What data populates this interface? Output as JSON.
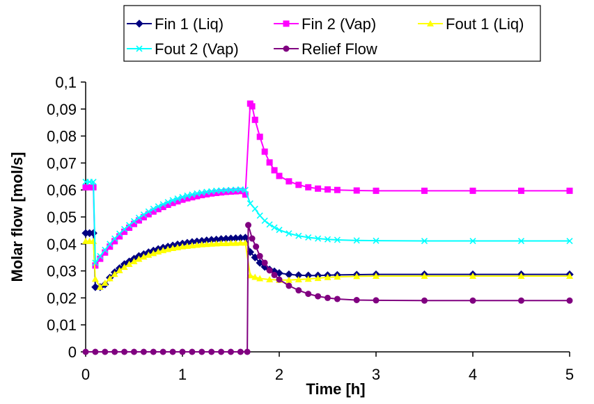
{
  "chart_data": {
    "type": "line",
    "title": "",
    "xlabel": "Time [h]",
    "ylabel": "Molar flow [mol/s]",
    "xlim": [
      0,
      5
    ],
    "ylim": [
      0,
      0.1
    ],
    "x_ticks": [
      "0",
      "1",
      "2",
      "3",
      "4",
      "5"
    ],
    "y_ticks": [
      "0",
      "0,01",
      "0,02",
      "0,03",
      "0,04",
      "0,05",
      "0,06",
      "0,07",
      "0,08",
      "0,09",
      "0,1"
    ],
    "grid": false,
    "legend_position": "top",
    "series": [
      {
        "name": "Fin 1 (Liq)",
        "color": "#000080",
        "marker": "diamond",
        "points": [
          [
            0,
            0.044
          ],
          [
            0.04,
            0.044
          ],
          [
            0.08,
            0.044
          ],
          [
            0.1,
            0.024
          ],
          [
            0.15,
            0.024
          ],
          [
            0.2,
            0.025
          ],
          [
            0.25,
            0.0275
          ],
          [
            0.3,
            0.0295
          ],
          [
            0.35,
            0.031
          ],
          [
            0.4,
            0.0325
          ],
          [
            0.45,
            0.0335
          ],
          [
            0.5,
            0.0345
          ],
          [
            0.55,
            0.0355
          ],
          [
            0.6,
            0.0362
          ],
          [
            0.65,
            0.0369
          ],
          [
            0.7,
            0.0375
          ],
          [
            0.75,
            0.0381
          ],
          [
            0.8,
            0.0386
          ],
          [
            0.85,
            0.039
          ],
          [
            0.9,
            0.0394
          ],
          [
            0.95,
            0.0398
          ],
          [
            1.0,
            0.0401
          ],
          [
            1.05,
            0.0404
          ],
          [
            1.1,
            0.0407
          ],
          [
            1.15,
            0.0409
          ],
          [
            1.2,
            0.0411
          ],
          [
            1.25,
            0.0413
          ],
          [
            1.3,
            0.0415
          ],
          [
            1.35,
            0.0416
          ],
          [
            1.4,
            0.0418
          ],
          [
            1.45,
            0.0419
          ],
          [
            1.5,
            0.042
          ],
          [
            1.55,
            0.0421
          ],
          [
            1.6,
            0.0422
          ],
          [
            1.65,
            0.0423
          ],
          [
            1.7,
            0.037
          ],
          [
            1.75,
            0.035
          ],
          [
            1.8,
            0.033
          ],
          [
            1.85,
            0.0315
          ],
          [
            1.9,
            0.0305
          ],
          [
            1.95,
            0.0298
          ],
          [
            2.0,
            0.0292
          ],
          [
            2.1,
            0.0287
          ],
          [
            2.2,
            0.0284
          ],
          [
            2.3,
            0.0283
          ],
          [
            2.4,
            0.0283
          ],
          [
            2.5,
            0.0284
          ],
          [
            2.6,
            0.0285
          ],
          [
            2.8,
            0.0286
          ],
          [
            3.0,
            0.0287
          ],
          [
            3.5,
            0.0287
          ],
          [
            4.0,
            0.0287
          ],
          [
            4.5,
            0.0287
          ],
          [
            5.0,
            0.0287
          ]
        ]
      },
      {
        "name": "Fin 2 (Vap)",
        "color": "#FF00FF",
        "marker": "square",
        "points": [
          [
            0,
            0.061
          ],
          [
            0.04,
            0.061
          ],
          [
            0.08,
            0.061
          ],
          [
            0.1,
            0.032
          ],
          [
            0.15,
            0.0345
          ],
          [
            0.2,
            0.0368
          ],
          [
            0.25,
            0.039
          ],
          [
            0.3,
            0.041
          ],
          [
            0.35,
            0.0428
          ],
          [
            0.4,
            0.0445
          ],
          [
            0.45,
            0.046
          ],
          [
            0.5,
            0.0474
          ],
          [
            0.55,
            0.0487
          ],
          [
            0.6,
            0.0499
          ],
          [
            0.65,
            0.051
          ],
          [
            0.7,
            0.052
          ],
          [
            0.75,
            0.0529
          ],
          [
            0.8,
            0.0537
          ],
          [
            0.85,
            0.0545
          ],
          [
            0.9,
            0.0552
          ],
          [
            0.95,
            0.0558
          ],
          [
            1.0,
            0.0564
          ],
          [
            1.05,
            0.0569
          ],
          [
            1.1,
            0.0573
          ],
          [
            1.15,
            0.0577
          ],
          [
            1.2,
            0.0581
          ],
          [
            1.25,
            0.0584
          ],
          [
            1.3,
            0.0587
          ],
          [
            1.35,
            0.0589
          ],
          [
            1.4,
            0.0591
          ],
          [
            1.45,
            0.0593
          ],
          [
            1.5,
            0.0594
          ],
          [
            1.55,
            0.0595
          ],
          [
            1.6,
            0.0596
          ],
          [
            1.65,
            0.0583
          ],
          [
            1.7,
            0.092
          ],
          [
            1.72,
            0.091
          ],
          [
            1.75,
            0.086
          ],
          [
            1.8,
            0.0797
          ],
          [
            1.85,
            0.0742
          ],
          [
            1.9,
            0.0702
          ],
          [
            1.95,
            0.0673
          ],
          [
            2.0,
            0.0652
          ],
          [
            2.1,
            0.0632
          ],
          [
            2.2,
            0.0619
          ],
          [
            2.3,
            0.061
          ],
          [
            2.4,
            0.0605
          ],
          [
            2.5,
            0.0602
          ],
          [
            2.6,
            0.06
          ],
          [
            2.8,
            0.0598
          ],
          [
            3.0,
            0.0597
          ],
          [
            3.5,
            0.0597
          ],
          [
            4.0,
            0.0597
          ],
          [
            4.5,
            0.0597
          ],
          [
            5.0,
            0.0597
          ]
        ]
      },
      {
        "name": "Fout 1 (Liq)",
        "color": "#FFFF00",
        "marker": "triangle",
        "points": [
          [
            0,
            0.041
          ],
          [
            0.04,
            0.041
          ],
          [
            0.08,
            0.041
          ],
          [
            0.1,
            0.027
          ],
          [
            0.15,
            0.024
          ],
          [
            0.2,
            0.0255
          ],
          [
            0.25,
            0.0272
          ],
          [
            0.3,
            0.0288
          ],
          [
            0.35,
            0.0302
          ],
          [
            0.4,
            0.0314
          ],
          [
            0.45,
            0.0325
          ],
          [
            0.5,
            0.0335
          ],
          [
            0.55,
            0.0344
          ],
          [
            0.6,
            0.0352
          ],
          [
            0.65,
            0.0359
          ],
          [
            0.7,
            0.0365
          ],
          [
            0.75,
            0.0371
          ],
          [
            0.8,
            0.0376
          ],
          [
            0.85,
            0.038
          ],
          [
            0.9,
            0.0384
          ],
          [
            0.95,
            0.0387
          ],
          [
            1.0,
            0.039
          ],
          [
            1.05,
            0.0392
          ],
          [
            1.1,
            0.0394
          ],
          [
            1.15,
            0.0396
          ],
          [
            1.2,
            0.0398
          ],
          [
            1.25,
            0.0399
          ],
          [
            1.3,
            0.04
          ],
          [
            1.35,
            0.0401
          ],
          [
            1.4,
            0.0402
          ],
          [
            1.45,
            0.0402
          ],
          [
            1.5,
            0.0403
          ],
          [
            1.55,
            0.0403
          ],
          [
            1.6,
            0.0404
          ],
          [
            1.65,
            0.0404
          ],
          [
            1.7,
            0.0283
          ],
          [
            1.75,
            0.0277
          ],
          [
            1.8,
            0.0272
          ],
          [
            1.9,
            0.0268
          ],
          [
            2.0,
            0.0266
          ],
          [
            2.1,
            0.0266
          ],
          [
            2.2,
            0.0268
          ],
          [
            2.3,
            0.027
          ],
          [
            2.4,
            0.0273
          ],
          [
            2.5,
            0.0276
          ],
          [
            2.6,
            0.0278
          ],
          [
            2.8,
            0.028
          ],
          [
            3.0,
            0.0281
          ],
          [
            3.5,
            0.0281
          ],
          [
            4.0,
            0.0281
          ],
          [
            4.5,
            0.0281
          ],
          [
            5.0,
            0.0281
          ]
        ]
      },
      {
        "name": "Fout 2 (Vap)",
        "color": "#00FFFF",
        "marker": "x",
        "points": [
          [
            0,
            0.063
          ],
          [
            0.04,
            0.063
          ],
          [
            0.08,
            0.063
          ],
          [
            0.1,
            0.033
          ],
          [
            0.15,
            0.0355
          ],
          [
            0.2,
            0.0378
          ],
          [
            0.25,
            0.04
          ],
          [
            0.3,
            0.042
          ],
          [
            0.35,
            0.0438
          ],
          [
            0.4,
            0.0455
          ],
          [
            0.45,
            0.047
          ],
          [
            0.5,
            0.0484
          ],
          [
            0.55,
            0.0497
          ],
          [
            0.6,
            0.0509
          ],
          [
            0.65,
            0.052
          ],
          [
            0.7,
            0.053
          ],
          [
            0.75,
            0.0539
          ],
          [
            0.8,
            0.0547
          ],
          [
            0.85,
            0.0555
          ],
          [
            0.9,
            0.0562
          ],
          [
            0.95,
            0.0568
          ],
          [
            1.0,
            0.0574
          ],
          [
            1.05,
            0.0579
          ],
          [
            1.1,
            0.0583
          ],
          [
            1.15,
            0.0587
          ],
          [
            1.2,
            0.059
          ],
          [
            1.25,
            0.0593
          ],
          [
            1.3,
            0.0595
          ],
          [
            1.35,
            0.0597
          ],
          [
            1.4,
            0.0598
          ],
          [
            1.45,
            0.0599
          ],
          [
            1.5,
            0.06
          ],
          [
            1.55,
            0.0601
          ],
          [
            1.6,
            0.0602
          ],
          [
            1.65,
            0.06
          ],
          [
            1.7,
            0.055
          ],
          [
            1.75,
            0.053
          ],
          [
            1.8,
            0.0505
          ],
          [
            1.85,
            0.0486
          ],
          [
            1.9,
            0.0472
          ],
          [
            1.95,
            0.0461
          ],
          [
            2.0,
            0.0452
          ],
          [
            2.1,
            0.0439
          ],
          [
            2.2,
            0.043
          ],
          [
            2.3,
            0.0424
          ],
          [
            2.4,
            0.042
          ],
          [
            2.5,
            0.0417
          ],
          [
            2.6,
            0.0415
          ],
          [
            2.8,
            0.0413
          ],
          [
            3.0,
            0.0412
          ],
          [
            3.5,
            0.0411
          ],
          [
            4.0,
            0.0411
          ],
          [
            4.5,
            0.0411
          ],
          [
            5.0,
            0.0411
          ]
        ]
      },
      {
        "name": "Relief Flow",
        "color": "#800080",
        "marker": "circle",
        "points": [
          [
            0,
            0
          ],
          [
            0.1,
            0
          ],
          [
            0.2,
            0
          ],
          [
            0.3,
            0
          ],
          [
            0.4,
            0
          ],
          [
            0.5,
            0
          ],
          [
            0.6,
            0
          ],
          [
            0.7,
            0
          ],
          [
            0.8,
            0
          ],
          [
            0.9,
            0
          ],
          [
            1.0,
            0
          ],
          [
            1.1,
            0
          ],
          [
            1.2,
            0
          ],
          [
            1.3,
            0
          ],
          [
            1.4,
            0
          ],
          [
            1.5,
            0
          ],
          [
            1.6,
            0
          ],
          [
            1.67,
            0
          ],
          [
            1.68,
            0.047
          ],
          [
            1.72,
            0.042
          ],
          [
            1.76,
            0.039
          ],
          [
            1.8,
            0.0355
          ],
          [
            1.85,
            0.033
          ],
          [
            1.9,
            0.0302
          ],
          [
            1.95,
            0.0285
          ],
          [
            2.0,
            0.0268
          ],
          [
            2.1,
            0.0245
          ],
          [
            2.2,
            0.0228
          ],
          [
            2.3,
            0.0215
          ],
          [
            2.4,
            0.0206
          ],
          [
            2.5,
            0.02
          ],
          [
            2.6,
            0.0196
          ],
          [
            2.8,
            0.0192
          ],
          [
            3.0,
            0.0191
          ],
          [
            3.5,
            0.019
          ],
          [
            4.0,
            0.019
          ],
          [
            4.5,
            0.019
          ],
          [
            5.0,
            0.019
          ]
        ]
      }
    ]
  }
}
